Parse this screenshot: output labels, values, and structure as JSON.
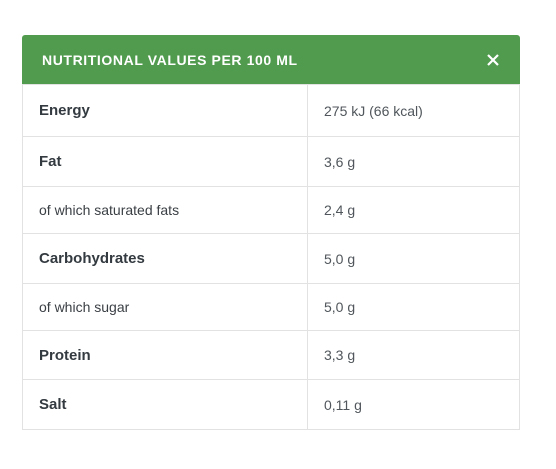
{
  "header": {
    "title": "NUTRITIONAL VALUES PER 100 ML"
  },
  "table": {
    "rows": [
      {
        "label": "Energy",
        "value": "275 kJ (66 kcal)",
        "bold": true
      },
      {
        "label": "Fat",
        "value": "3,6 g",
        "bold": true
      },
      {
        "label": "of which saturated fats",
        "value": "2,4 g",
        "bold": false
      },
      {
        "label": "Carbohydrates",
        "value": "5,0 g",
        "bold": true
      },
      {
        "label": "of which sugar",
        "value": "5,0 g",
        "bold": false
      },
      {
        "label": "Protein",
        "value": "3,3 g",
        "bold": true
      },
      {
        "label": "Salt",
        "value": "0,11 g",
        "bold": true
      }
    ]
  }
}
